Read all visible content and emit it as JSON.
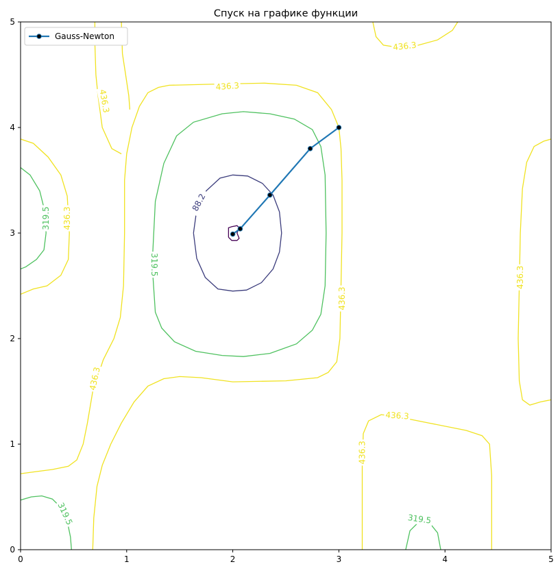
{
  "chart_data": {
    "type": "line",
    "title": "Спуск на графике функции",
    "xlim": [
      0,
      5
    ],
    "ylim": [
      0,
      5
    ],
    "x_ticks": [
      "0",
      "1",
      "2",
      "3",
      "4",
      "5"
    ],
    "y_ticks": [
      "0",
      "1",
      "2",
      "3",
      "4",
      "5"
    ],
    "grid": false,
    "legend": {
      "placement": "top-left",
      "entries": [
        "Gauss-Newton"
      ]
    },
    "series": [
      {
        "name": "Gauss-Newton",
        "color": "#1f77b4",
        "x": [
          3.0,
          2.73,
          2.35,
          2.07,
          2.0
        ],
        "y": [
          4.0,
          3.8,
          3.36,
          3.04,
          2.99
        ]
      }
    ],
    "contours": [
      {
        "level": "88.2",
        "color": "#3b3c7c",
        "paths": [
          [
            [
              1.63,
              3.0
            ],
            [
              1.66,
              3.22
            ],
            [
              1.75,
              3.4
            ],
            [
              1.88,
              3.52
            ],
            [
              2.0,
              3.55
            ],
            [
              2.14,
              3.54
            ],
            [
              2.28,
              3.47
            ],
            [
              2.38,
              3.36
            ],
            [
              2.44,
              3.2
            ],
            [
              2.46,
              3.0
            ],
            [
              2.44,
              2.82
            ],
            [
              2.38,
              2.66
            ],
            [
              2.27,
              2.53
            ],
            [
              2.13,
              2.46
            ],
            [
              2.0,
              2.45
            ],
            [
              1.86,
              2.47
            ],
            [
              1.74,
              2.58
            ],
            [
              1.66,
              2.76
            ],
            [
              1.63,
              3.0
            ]
          ]
        ],
        "labels": [
          {
            "text": "88.2",
            "x": 1.68,
            "y": 3.29,
            "rotate": -62
          }
        ]
      },
      {
        "level": "",
        "color": "#440154",
        "paths": [
          [
            [
              1.96,
              2.96
            ],
            [
              1.96,
              3.05
            ],
            [
              1.99,
              3.06
            ],
            [
              2.04,
              3.07
            ],
            [
              2.06,
              3.05
            ],
            [
              2.04,
              3.0
            ],
            [
              2.06,
              2.95
            ],
            [
              2.04,
              2.93
            ],
            [
              1.99,
              2.93
            ],
            [
              1.96,
              2.96
            ]
          ]
        ],
        "labels": []
      },
      {
        "level": "319.5",
        "color": "#4ec15f",
        "paths": [
          [
            [
              1.24,
              2.7
            ],
            [
              1.27,
              3.3
            ],
            [
              1.35,
              3.66
            ],
            [
              1.47,
              3.92
            ],
            [
              1.63,
              4.05
            ],
            [
              1.9,
              4.13
            ],
            [
              2.1,
              4.15
            ],
            [
              2.35,
              4.13
            ],
            [
              2.58,
              4.08
            ],
            [
              2.75,
              3.98
            ],
            [
              2.83,
              3.82
            ],
            [
              2.87,
              3.55
            ],
            [
              2.88,
              3.0
            ],
            [
              2.87,
              2.5
            ],
            [
              2.83,
              2.23
            ],
            [
              2.75,
              2.08
            ],
            [
              2.6,
              1.95
            ],
            [
              2.35,
              1.86
            ],
            [
              2.1,
              1.83
            ],
            [
              1.9,
              1.84
            ],
            [
              1.65,
              1.88
            ],
            [
              1.45,
              1.97
            ],
            [
              1.33,
              2.1
            ],
            [
              1.27,
              2.25
            ],
            [
              1.24,
              2.7
            ]
          ],
          [
            [
              0.0,
              3.62
            ],
            [
              0.09,
              3.55
            ],
            [
              0.18,
              3.4
            ],
            [
              0.23,
              3.2
            ],
            [
              0.24,
              3.0
            ],
            [
              0.22,
              2.84
            ],
            [
              0.15,
              2.75
            ],
            [
              0.05,
              2.68
            ],
            [
              0.0,
              2.66
            ]
          ],
          [
            [
              0.0,
              0.47
            ],
            [
              0.1,
              0.5
            ],
            [
              0.2,
              0.51
            ],
            [
              0.3,
              0.48
            ],
            [
              0.38,
              0.4
            ],
            [
              0.44,
              0.27
            ],
            [
              0.47,
              0.12
            ],
            [
              0.48,
              0.0
            ]
          ],
          [
            [
              3.63,
              0.0
            ],
            [
              3.67,
              0.18
            ],
            [
              3.75,
              0.26
            ],
            [
              3.85,
              0.26
            ],
            [
              3.93,
              0.16
            ],
            [
              3.96,
              0.0
            ]
          ]
        ],
        "labels": [
          {
            "text": "319.5",
            "x": 1.26,
            "y": 2.7,
            "rotate": 90
          },
          {
            "text": "319.5",
            "x": 0.24,
            "y": 3.14,
            "rotate": -90
          },
          {
            "text": "319.5",
            "x": 0.42,
            "y": 0.34,
            "rotate": 65
          },
          {
            "text": "319.5",
            "x": 3.76,
            "y": 0.29,
            "rotate": 8
          }
        ]
      },
      {
        "level": "436.3",
        "color": "#f0e220",
        "paths": [
          [
            [
              3.0,
              4.0
            ],
            [
              2.93,
              4.17
            ],
            [
              2.8,
              4.33
            ],
            [
              2.6,
              4.4
            ],
            [
              2.3,
              4.42
            ],
            [
              1.8,
              4.41
            ],
            [
              1.4,
              4.4
            ],
            [
              1.3,
              4.38
            ],
            [
              1.2,
              4.33
            ],
            [
              1.12,
              4.2
            ],
            [
              1.05,
              4.0
            ],
            [
              1.0,
              3.75
            ],
            [
              0.98,
              3.5
            ],
            [
              0.98,
              3.0
            ],
            [
              0.97,
              2.5
            ],
            [
              0.94,
              2.2
            ],
            [
              0.88,
              2.0
            ],
            [
              0.78,
              1.8
            ],
            [
              0.68,
              1.5
            ],
            [
              0.63,
              1.2
            ],
            [
              0.59,
              1.0
            ],
            [
              0.53,
              0.85
            ],
            [
              0.45,
              0.79
            ],
            [
              0.3,
              0.76
            ],
            [
              0.15,
              0.74
            ],
            [
              0.0,
              0.72
            ]
          ],
          [
            [
              0.0,
              3.89
            ],
            [
              0.12,
              3.85
            ],
            [
              0.26,
              3.72
            ],
            [
              0.38,
              3.55
            ],
            [
              0.44,
              3.35
            ],
            [
              0.46,
              3.0
            ],
            [
              0.45,
              2.75
            ],
            [
              0.38,
              2.6
            ],
            [
              0.25,
              2.5
            ],
            [
              0.12,
              2.47
            ],
            [
              0.0,
              2.42
            ]
          ],
          [
            [
              1.03,
              4.17
            ],
            [
              1.02,
              4.3
            ],
            [
              0.99,
              4.5
            ],
            [
              0.96,
              4.7
            ],
            [
              0.95,
              5.0
            ]
          ],
          [
            [
              0.7,
              5.0
            ],
            [
              0.7,
              4.8
            ],
            [
              0.71,
              4.5
            ],
            [
              0.73,
              4.3
            ],
            [
              0.77,
              4.0
            ],
            [
              0.86,
              3.8
            ],
            [
              0.95,
              3.75
            ]
          ],
          [
            [
              3.0,
              4.0
            ],
            [
              3.02,
              3.8
            ],
            [
              3.03,
              3.5
            ],
            [
              3.03,
              3.0
            ],
            [
              3.02,
              2.5
            ],
            [
              3.01,
              2.0
            ],
            [
              2.98,
              1.78
            ],
            [
              2.9,
              1.68
            ],
            [
              2.8,
              1.63
            ],
            [
              2.5,
              1.6
            ],
            [
              2.0,
              1.59
            ],
            [
              1.7,
              1.63
            ],
            [
              1.5,
              1.64
            ],
            [
              1.35,
              1.62
            ],
            [
              1.2,
              1.55
            ],
            [
              1.07,
              1.4
            ],
            [
              0.95,
              1.2
            ],
            [
              0.85,
              1.0
            ],
            [
              0.77,
              0.8
            ],
            [
              0.72,
              0.6
            ],
            [
              0.69,
              0.3
            ],
            [
              0.68,
              0.0
            ]
          ],
          [
            [
              3.22,
              0.0
            ],
            [
              3.22,
              0.4
            ],
            [
              3.22,
              0.8
            ],
            [
              3.23,
              1.1
            ],
            [
              3.28,
              1.22
            ],
            [
              3.4,
              1.28
            ],
            [
              3.6,
              1.25
            ],
            [
              3.85,
              1.2
            ],
            [
              4.2,
              1.13
            ],
            [
              4.35,
              1.08
            ],
            [
              4.42,
              1.0
            ],
            [
              4.44,
              0.7
            ],
            [
              4.44,
              0.3
            ],
            [
              4.44,
              0.0
            ]
          ],
          [
            [
              5.0,
              3.89
            ],
            [
              4.93,
              3.87
            ],
            [
              4.84,
              3.82
            ],
            [
              4.77,
              3.67
            ],
            [
              4.73,
              3.42
            ],
            [
              4.71,
              3.0
            ],
            [
              4.7,
              2.5
            ],
            [
              4.69,
              2.0
            ],
            [
              4.7,
              1.6
            ],
            [
              4.73,
              1.42
            ],
            [
              4.8,
              1.37
            ],
            [
              4.9,
              1.4
            ],
            [
              5.0,
              1.42
            ]
          ],
          [
            [
              3.32,
              5.0
            ],
            [
              3.35,
              4.86
            ],
            [
              3.42,
              4.78
            ],
            [
              3.55,
              4.76
            ],
            [
              3.75,
              4.78
            ],
            [
              3.93,
              4.83
            ],
            [
              4.07,
              4.92
            ],
            [
              4.12,
              5.0
            ]
          ]
        ],
        "labels": [
          {
            "text": "436.3",
            "x": 1.95,
            "y": 4.39,
            "rotate": -4
          },
          {
            "text": "436.3",
            "x": 0.79,
            "y": 4.25,
            "rotate": 80
          },
          {
            "text": "436.3",
            "x": 0.44,
            "y": 3.14,
            "rotate": -90
          },
          {
            "text": "436.3",
            "x": 3.03,
            "y": 2.38,
            "rotate": -90
          },
          {
            "text": "436.3",
            "x": 0.7,
            "y": 1.62,
            "rotate": -78
          },
          {
            "text": "436.3",
            "x": 3.22,
            "y": 0.92,
            "rotate": -90
          },
          {
            "text": "436.3",
            "x": 3.55,
            "y": 1.27,
            "rotate": 4
          },
          {
            "text": "436.3",
            "x": 4.71,
            "y": 2.58,
            "rotate": -90
          },
          {
            "text": "436.3",
            "x": 3.62,
            "y": 4.77,
            "rotate": -6
          }
        ]
      }
    ]
  }
}
